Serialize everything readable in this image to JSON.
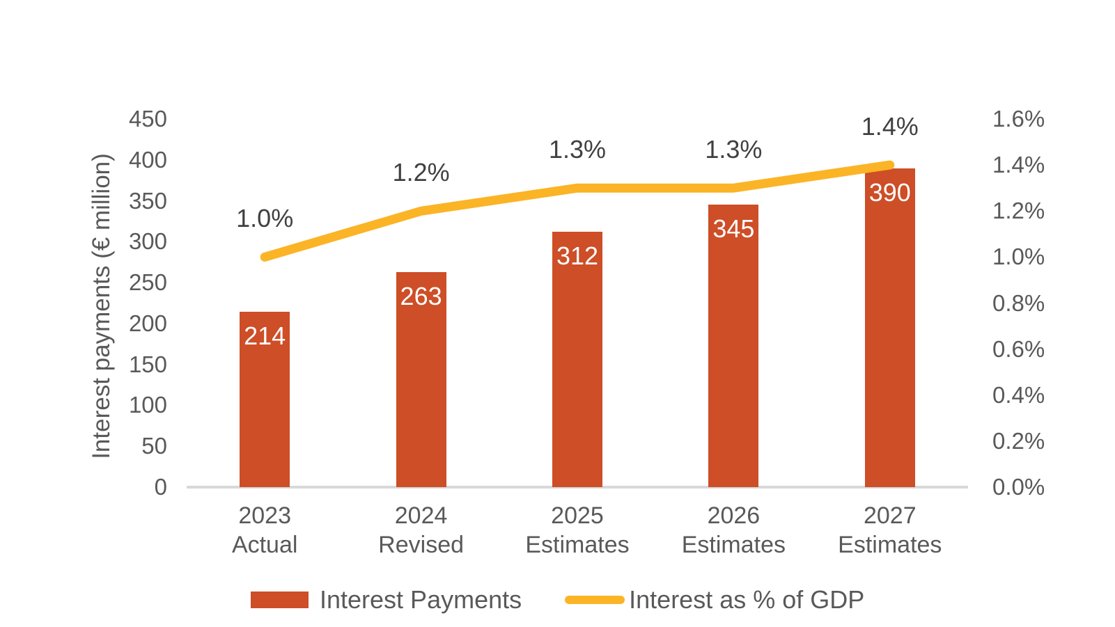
{
  "chart_data": {
    "type": "combo-bar-line",
    "categories": [
      {
        "line1": "2023",
        "line2": "Actual"
      },
      {
        "line1": "2024",
        "line2": "Revised"
      },
      {
        "line1": "2025",
        "line2": "Estimates"
      },
      {
        "line1": "2026",
        "line2": "Estimates"
      },
      {
        "line1": "2027",
        "line2": "Estimates"
      }
    ],
    "series": [
      {
        "name": "Interest Payments",
        "type": "bar",
        "axis": "left",
        "values": [
          214,
          263,
          312,
          345,
          390
        ],
        "data_labels": [
          "214",
          "263",
          "312",
          "345",
          "390"
        ],
        "color": "#CD4E27",
        "label_color": "#FFFFFF"
      },
      {
        "name": "Interest as % of GDP",
        "type": "line",
        "axis": "right",
        "values": [
          1.0,
          1.2,
          1.3,
          1.3,
          1.4
        ],
        "data_labels": [
          "1.0%",
          "1.2%",
          "1.3%",
          "1.3%",
          "1.4%"
        ],
        "color": "#FBB426",
        "label_color": "#404040"
      }
    ],
    "left_axis": {
      "title": "Interest payments (€ million)",
      "ticks": [
        "450",
        "400",
        "350",
        "300",
        "250",
        "200",
        "150",
        "100",
        "50",
        "0"
      ],
      "range": [
        0,
        450
      ]
    },
    "right_axis": {
      "ticks": [
        "1.6%",
        "1.4%",
        "1.2%",
        "1.0%",
        "0.8%",
        "0.6%",
        "0.4%",
        "0.2%",
        "0.0%"
      ],
      "range": [
        0,
        1.6
      ]
    },
    "legend": [
      {
        "label": "Interest Payments",
        "swatch": "bar",
        "color": "#CD4E27"
      },
      {
        "label": "Interest as % of GDP",
        "swatch": "line",
        "color": "#FBB426"
      }
    ],
    "grid": "off",
    "legend_position": "bottom",
    "colors": {
      "axis_line": "#D9D9D9",
      "tick_text": "#595959"
    }
  }
}
